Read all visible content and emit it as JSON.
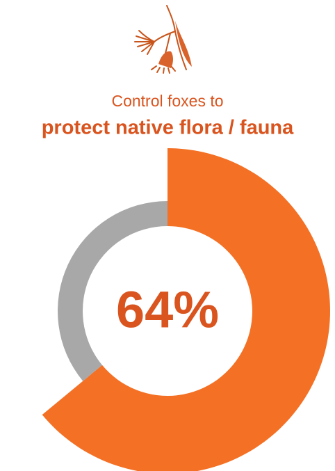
{
  "chart_data": {
    "type": "donut",
    "title": "Control foxes to",
    "subtitle": "protect native flora / fauna",
    "values": [
      64,
      36
    ],
    "value_labels": [
      "64%",
      null
    ],
    "colors": [
      "#f47024",
      "#a8a8a8"
    ]
  }
}
